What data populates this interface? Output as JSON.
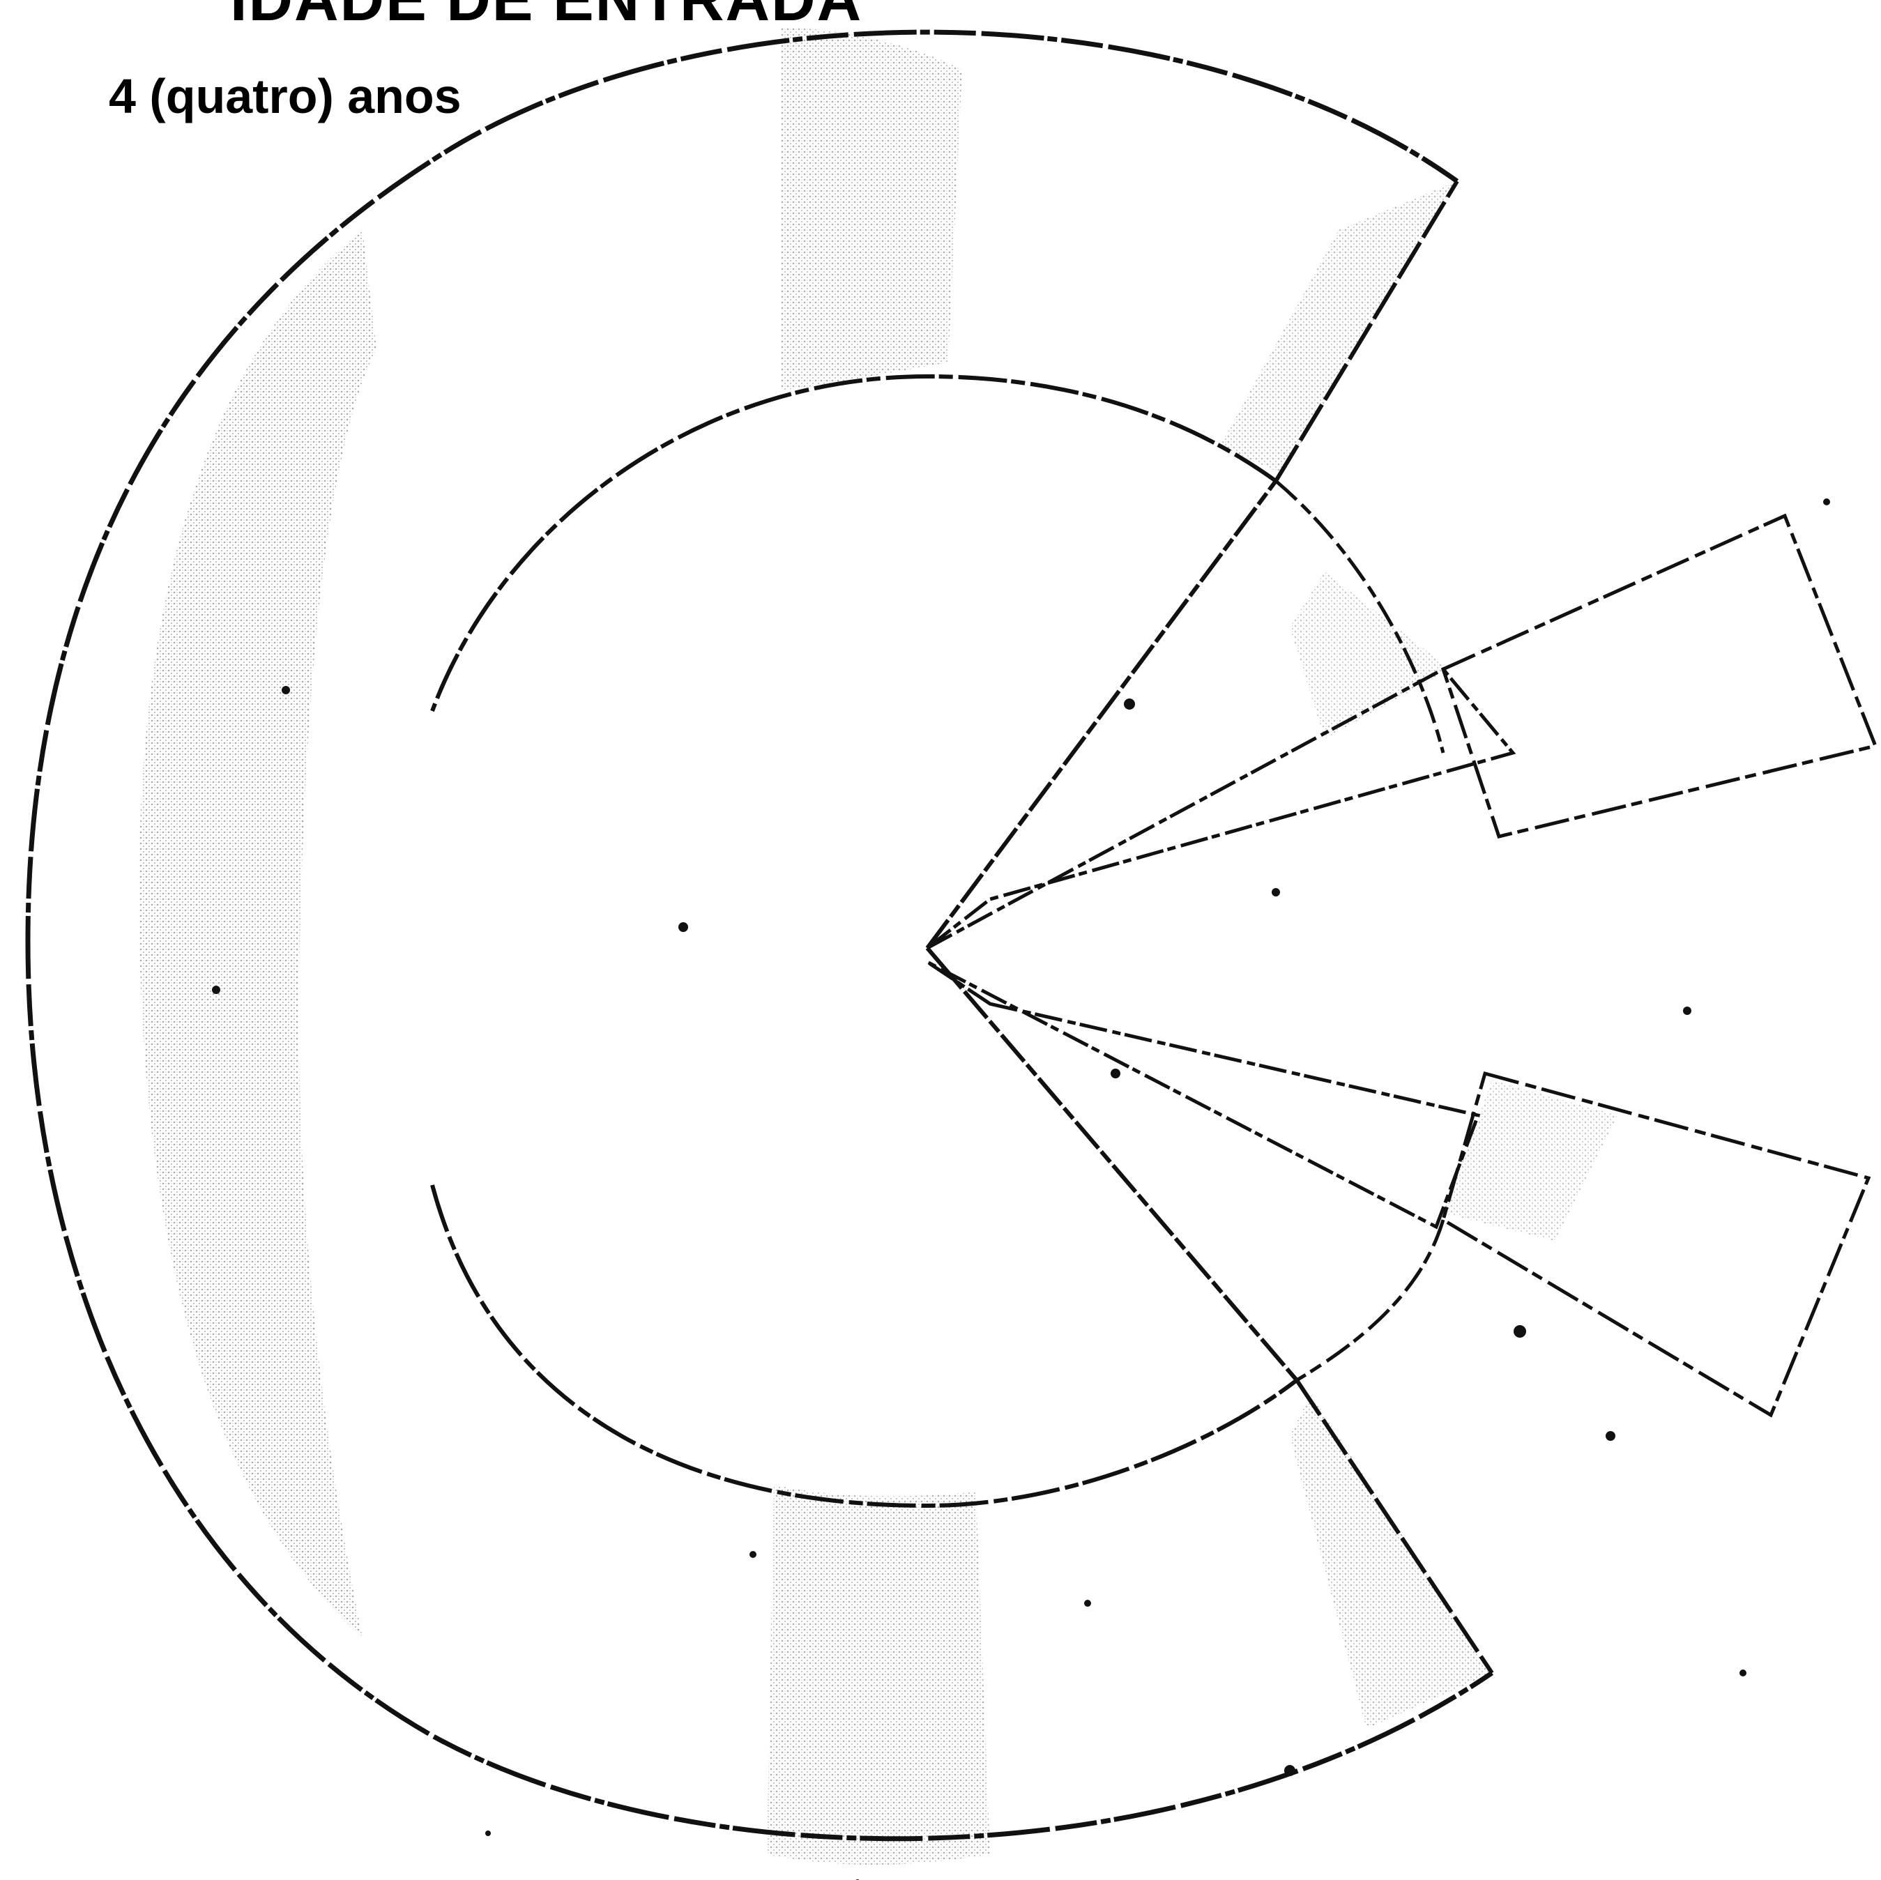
{
  "header_cut": "IDADE DE ENTRADA",
  "title": "4 (quatro) anos",
  "colors": {
    "ink": "#111111",
    "shade": "#b8b8b8",
    "background": "#ffffff"
  }
}
